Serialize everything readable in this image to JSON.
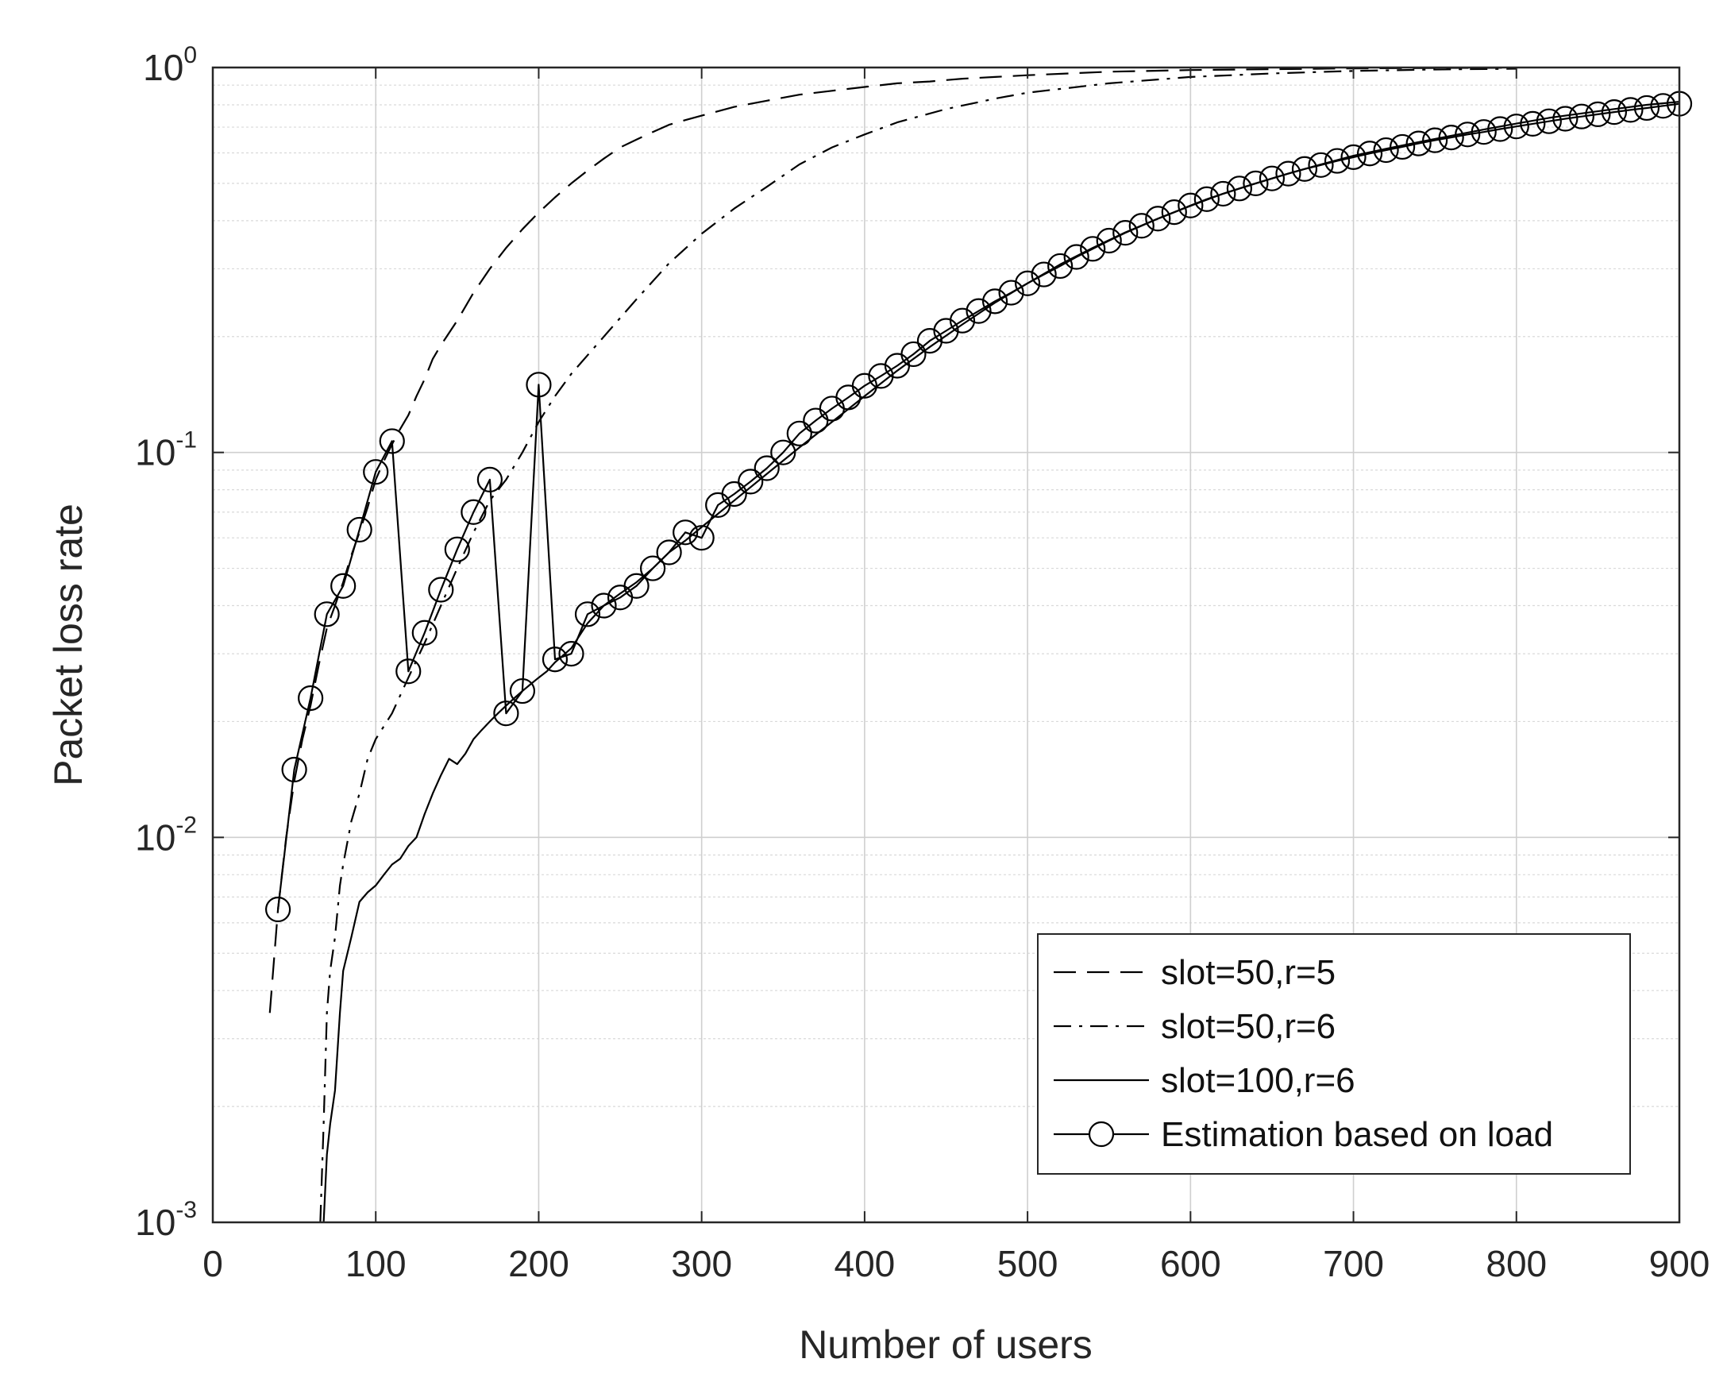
{
  "chart_data": {
    "type": "line",
    "title": "",
    "xlabel": "Number of users",
    "ylabel": "Packet loss rate",
    "xlim": [
      0,
      900
    ],
    "ylim": [
      0.001,
      1
    ],
    "yscale": "log",
    "grid": true,
    "xticks": [
      "0",
      "100",
      "200",
      "300",
      "400",
      "500",
      "600",
      "700",
      "800",
      "900"
    ],
    "yticks": [
      {
        "base": "10",
        "exp": "-3"
      },
      {
        "base": "10",
        "exp": "-2"
      },
      {
        "base": "10",
        "exp": "-1"
      },
      {
        "base": "10",
        "exp": "0"
      }
    ],
    "legend": {
      "position": "bottom-right",
      "entries": [
        "slot=50,r=5",
        "slot=50,r=6",
        "slot=100,r=6",
        "Estimation based on load"
      ]
    },
    "series": [
      {
        "name": "slot=50,r=5",
        "style": "dashed",
        "color": "#000000",
        "x": [
          35,
          40,
          45,
          50,
          55,
          60,
          65,
          70,
          75,
          80,
          85,
          90,
          95,
          100,
          105,
          110,
          115,
          120,
          125,
          130,
          135,
          140,
          150,
          160,
          170,
          180,
          190,
          200,
          210,
          220,
          230,
          240,
          250,
          260,
          270,
          280,
          290,
          300,
          320,
          340,
          360,
          380,
          400,
          420,
          440,
          460,
          480,
          500,
          550,
          600,
          650,
          700,
          750,
          800
        ],
        "y": [
          0.0035,
          0.0065,
          0.01,
          0.014,
          0.018,
          0.022,
          0.028,
          0.035,
          0.04,
          0.046,
          0.054,
          0.062,
          0.072,
          0.085,
          0.095,
          0.105,
          0.115,
          0.125,
          0.14,
          0.155,
          0.175,
          0.19,
          0.22,
          0.26,
          0.3,
          0.34,
          0.38,
          0.42,
          0.46,
          0.5,
          0.54,
          0.58,
          0.62,
          0.65,
          0.68,
          0.71,
          0.73,
          0.75,
          0.79,
          0.82,
          0.85,
          0.87,
          0.89,
          0.91,
          0.92,
          0.935,
          0.945,
          0.955,
          0.975,
          0.985,
          0.99,
          0.995,
          0.997,
          0.998
        ]
      },
      {
        "name": "slot=50,r=6",
        "style": "dashdot",
        "color": "#000000",
        "x": [
          66,
          68,
          70,
          72,
          75,
          78,
          80,
          85,
          90,
          95,
          100,
          110,
          120,
          130,
          140,
          150,
          160,
          170,
          180,
          190,
          200,
          210,
          220,
          240,
          260,
          280,
          300,
          320,
          340,
          360,
          380,
          400,
          420,
          450,
          480,
          500,
          550,
          600,
          650,
          700,
          750,
          800
        ],
        "y": [
          0.001,
          0.0018,
          0.0035,
          0.0045,
          0.0055,
          0.0075,
          0.0085,
          0.011,
          0.013,
          0.016,
          0.018,
          0.021,
          0.026,
          0.032,
          0.04,
          0.05,
          0.062,
          0.075,
          0.085,
          0.1,
          0.12,
          0.14,
          0.16,
          0.2,
          0.25,
          0.31,
          0.37,
          0.43,
          0.49,
          0.56,
          0.62,
          0.67,
          0.72,
          0.78,
          0.83,
          0.86,
          0.91,
          0.945,
          0.965,
          0.98,
          0.988,
          0.993
        ]
      },
      {
        "name": "slot=100,r=6",
        "style": "solid",
        "color": "#000000",
        "x": [
          68,
          70,
          72,
          75,
          78,
          80,
          85,
          90,
          95,
          100,
          105,
          110,
          115,
          120,
          125,
          130,
          135,
          140,
          145,
          150,
          155,
          160,
          165,
          170,
          175,
          180,
          185,
          190,
          195,
          200,
          205,
          210,
          220,
          230,
          240,
          250,
          260,
          270,
          280,
          290,
          300,
          320,
          340,
          360,
          380,
          400,
          420,
          440,
          460,
          480,
          500,
          520,
          540,
          560,
          580,
          600,
          620,
          640,
          660,
          680,
          700,
          720,
          740,
          760,
          780,
          800,
          820,
          840,
          860,
          880,
          900
        ],
        "y": [
          0.001,
          0.0015,
          0.0018,
          0.0022,
          0.0035,
          0.0045,
          0.0055,
          0.0068,
          0.0072,
          0.0075,
          0.008,
          0.0085,
          0.0088,
          0.0095,
          0.01,
          0.0115,
          0.013,
          0.0145,
          0.016,
          0.0155,
          0.0165,
          0.018,
          0.019,
          0.02,
          0.021,
          0.022,
          0.023,
          0.024,
          0.025,
          0.026,
          0.027,
          0.0285,
          0.031,
          0.036,
          0.04,
          0.043,
          0.046,
          0.05,
          0.055,
          0.059,
          0.064,
          0.075,
          0.088,
          0.103,
          0.12,
          0.14,
          0.163,
          0.188,
          0.215,
          0.245,
          0.275,
          0.308,
          0.34,
          0.373,
          0.405,
          0.437,
          0.47,
          0.5,
          0.53,
          0.56,
          0.59,
          0.615,
          0.64,
          0.665,
          0.69,
          0.715,
          0.74,
          0.76,
          0.78,
          0.8,
          0.815
        ]
      },
      {
        "name": "Estimation based on load",
        "style": "solid-circle",
        "color": "#000000",
        "x": [
          40,
          50,
          60,
          70,
          80,
          90,
          100,
          110,
          120,
          130,
          140,
          150,
          160,
          170,
          180,
          190,
          200,
          210,
          220,
          230,
          240,
          250,
          260,
          270,
          280,
          290,
          300,
          310,
          320,
          330,
          340,
          350,
          360,
          370,
          380,
          390,
          400,
          410,
          420,
          430,
          440,
          450,
          460,
          470,
          480,
          490,
          500,
          510,
          520,
          530,
          540,
          550,
          560,
          570,
          580,
          590,
          600,
          610,
          620,
          630,
          640,
          650,
          660,
          670,
          680,
          690,
          700,
          710,
          720,
          730,
          740,
          750,
          760,
          770,
          780,
          790,
          800,
          810,
          820,
          830,
          840,
          850,
          860,
          870,
          880,
          890,
          900
        ],
        "y": [
          0.0065,
          0.015,
          0.023,
          0.038,
          0.045,
          0.063,
          0.089,
          0.107,
          0.027,
          0.034,
          0.044,
          0.056,
          0.07,
          0.085,
          0.021,
          0.024,
          0.15,
          0.029,
          0.03,
          0.038,
          0.04,
          0.042,
          0.045,
          0.05,
          0.055,
          0.062,
          0.06,
          0.073,
          0.078,
          0.084,
          0.091,
          0.1,
          0.112,
          0.121,
          0.13,
          0.139,
          0.149,
          0.158,
          0.168,
          0.18,
          0.195,
          0.207,
          0.22,
          0.233,
          0.247,
          0.26,
          0.275,
          0.29,
          0.305,
          0.322,
          0.338,
          0.355,
          0.372,
          0.388,
          0.405,
          0.421,
          0.438,
          0.455,
          0.47,
          0.485,
          0.5,
          0.515,
          0.53,
          0.545,
          0.558,
          0.572,
          0.585,
          0.598,
          0.61,
          0.622,
          0.635,
          0.647,
          0.658,
          0.67,
          0.68,
          0.692,
          0.703,
          0.714,
          0.725,
          0.736,
          0.746,
          0.756,
          0.766,
          0.776,
          0.785,
          0.795,
          0.805
        ]
      }
    ]
  }
}
